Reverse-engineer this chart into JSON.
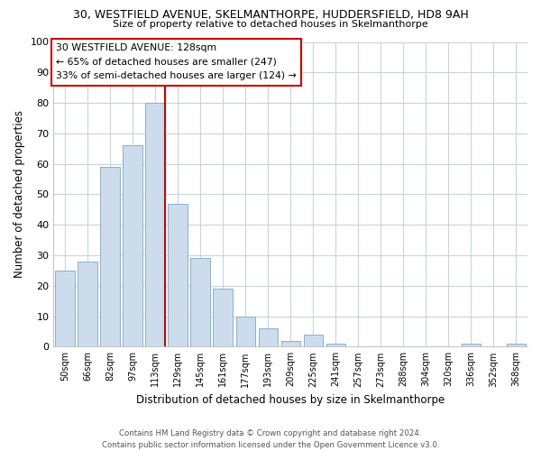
{
  "title_line1": "30, WESTFIELD AVENUE, SKELMANTHORPE, HUDDERSFIELD, HD8 9AH",
  "title_line2": "Size of property relative to detached houses in Skelmanthorpe",
  "xlabel": "Distribution of detached houses by size in Skelmanthorpe",
  "ylabel": "Number of detached properties",
  "bar_color": "#ccdcec",
  "bar_edge_color": "#8ab0cc",
  "categories": [
    "50sqm",
    "66sqm",
    "82sqm",
    "97sqm",
    "113sqm",
    "129sqm",
    "145sqm",
    "161sqm",
    "177sqm",
    "193sqm",
    "209sqm",
    "225sqm",
    "241sqm",
    "257sqm",
    "273sqm",
    "288sqm",
    "304sqm",
    "320sqm",
    "336sqm",
    "352sqm",
    "368sqm"
  ],
  "values": [
    25,
    28,
    59,
    66,
    80,
    47,
    29,
    19,
    10,
    6,
    2,
    4,
    1,
    0,
    0,
    0,
    0,
    0,
    1,
    0,
    1
  ],
  "ylim": [
    0,
    100
  ],
  "yticks": [
    0,
    10,
    20,
    30,
    40,
    50,
    60,
    70,
    80,
    90,
    100
  ],
  "vline_color": "#cc0000",
  "annotation_title": "30 WESTFIELD AVENUE: 128sqm",
  "annotation_line1": "← 65% of detached houses are smaller (247)",
  "annotation_line2": "33% of semi-detached houses are larger (124) →",
  "annotation_box_color": "#ffffff",
  "annotation_box_edge": "#cc0000",
  "footer_line1": "Contains HM Land Registry data © Crown copyright and database right 2024.",
  "footer_line2": "Contains public sector information licensed under the Open Government Licence v3.0.",
  "background_color": "#ffffff",
  "grid_color": "#c8d4e0"
}
